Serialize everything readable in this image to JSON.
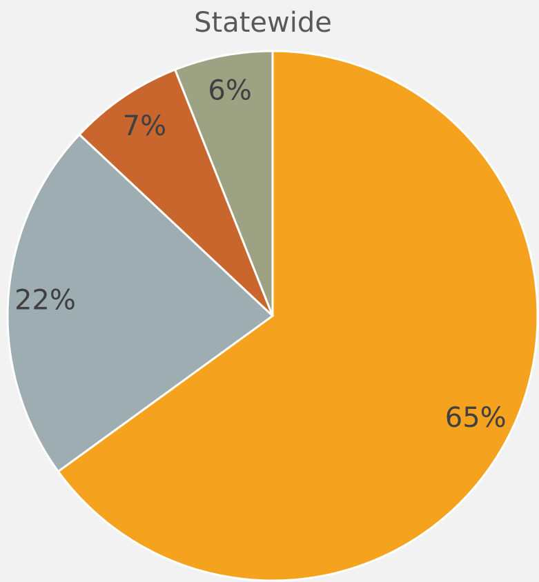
{
  "chart_data": {
    "type": "pie",
    "title": "Statewide",
    "values": [
      65,
      22,
      7,
      6
    ],
    "value_labels": [
      "65%",
      "22%",
      "7%",
      "6%"
    ],
    "colors": [
      "#f5a31f",
      "#9eadb2",
      "#c8662e",
      "#9da283"
    ]
  }
}
